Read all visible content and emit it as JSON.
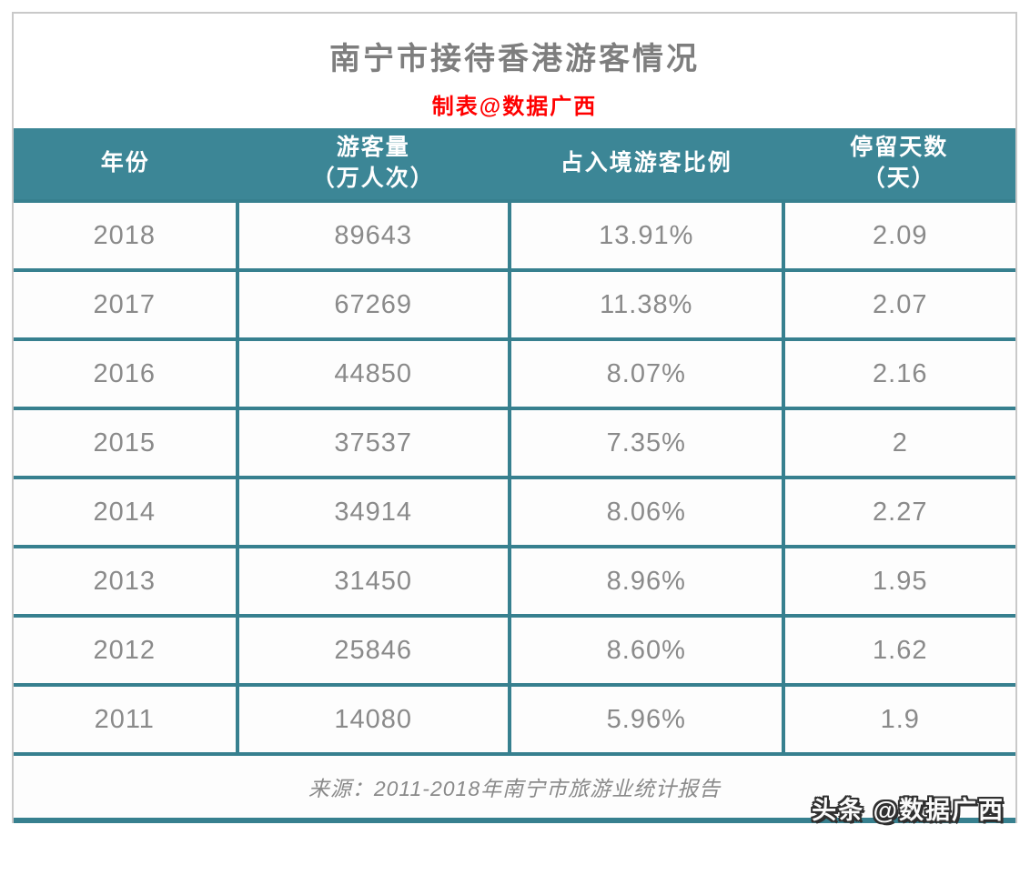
{
  "page": {
    "title": "南宁市接待香港游客情况",
    "subtitle": "制表@数据广西",
    "watermark": "头条 @数据广西"
  },
  "chart_data": {
    "type": "table",
    "title": "南宁市接待香港游客情况",
    "subtitle": "制表@数据广西",
    "columns": [
      "年份",
      "游客量（万人次）",
      "占入境游客比例",
      "停留天数（天）"
    ],
    "column_headers": [
      {
        "line1": "年份",
        "line2": ""
      },
      {
        "line1": "游客量",
        "line2": "（万人次）"
      },
      {
        "line1": "占入境游客比例",
        "line2": ""
      },
      {
        "line1": "停留天数",
        "line2": "（天）"
      }
    ],
    "rows": [
      [
        "2018",
        "89643",
        "13.91%",
        "2.09"
      ],
      [
        "2017",
        "67269",
        "11.38%",
        "2.07"
      ],
      [
        "2016",
        "44850",
        "8.07%",
        "2.16"
      ],
      [
        "2015",
        "37537",
        "7.35%",
        "2"
      ],
      [
        "2014",
        "34914",
        "8.06%",
        "2.27"
      ],
      [
        "2013",
        "31450",
        "8.96%",
        "1.95"
      ],
      [
        "2012",
        "25846",
        "8.60%",
        "1.62"
      ],
      [
        "2011",
        "14080",
        "5.96%",
        "1.9"
      ]
    ],
    "source": "来源：2011-2018年南宁市旅游业统计报告"
  },
  "colors": {
    "accent_teal": "#3C8696",
    "border_teal": "#37808F",
    "title_gray": "#7E7E7E",
    "subtitle_red": "#FF0000",
    "cell_text_gray": "#8A8A8A",
    "header_text": "#FFFFFF"
  }
}
